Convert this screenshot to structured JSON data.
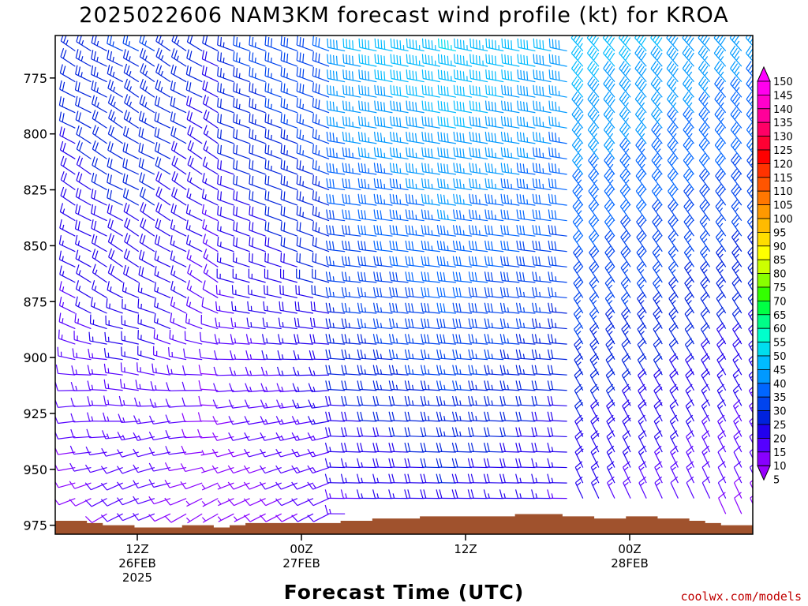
{
  "chart_data": {
    "type": "wind-barb time-height cross section",
    "title": "2025022606 NAM3KM forecast wind profile (kt) for KROA",
    "xlabel": "Forecast Time (UTC)",
    "ylabel": "",
    "units": "kt",
    "y_axis": {
      "quantity": "pressure (hPa)",
      "inverted": true,
      "range": [
        979,
        756
      ],
      "ticks": [
        775,
        800,
        825,
        850,
        875,
        900,
        925,
        950,
        975
      ]
    },
    "x_axis": {
      "range_hours": [
        0,
        51
      ],
      "ticks": [
        {
          "hour": 6,
          "line1": "12Z",
          "line2": "26FEB",
          "line3": "2025"
        },
        {
          "hour": 18,
          "line1": "00Z",
          "line2": "27FEB",
          "line3": ""
        },
        {
          "hour": 30,
          "line1": "12Z",
          "line2": "",
          "line3": ""
        },
        {
          "hour": 42,
          "line1": "00Z",
          "line2": "28FEB",
          "line3": ""
        },
        {
          "hour": 54,
          "line1": "12Z",
          "line2": "",
          "line3": ""
        }
      ]
    },
    "columns_hours_start": 1,
    "columns_count": 44,
    "levels_hpa_top": 756,
    "levels_hpa_step": 6.9,
    "levels_count": 33,
    "colorbar": {
      "levels": [
        5,
        10,
        15,
        20,
        25,
        30,
        35,
        40,
        45,
        50,
        55,
        60,
        65,
        70,
        75,
        80,
        85,
        90,
        95,
        100,
        105,
        110,
        115,
        120,
        125,
        130,
        135,
        140,
        145,
        150
      ],
      "colors": [
        "#8800ff",
        "#5500ff",
        "#2200ee",
        "#0022dd",
        "#0044ee",
        "#0066ff",
        "#0099ff",
        "#00bbff",
        "#00ddee",
        "#00ffcc",
        "#00ff88",
        "#00ff44",
        "#33ff00",
        "#88ff00",
        "#ccff00",
        "#ffff00",
        "#ffdd00",
        "#ffbb00",
        "#ff9900",
        "#ff7700",
        "#ff5500",
        "#ff3300",
        "#ff0000",
        "#ff0033",
        "#ff0066",
        "#ff0099",
        "#ff00cc",
        "#ff00ee"
      ],
      "top_color": "#ff00ff",
      "bottom_color": "#9900ff"
    },
    "ground": {
      "color": "#a0522d",
      "surface_pressure_hpa": [
        973,
        973,
        974,
        975,
        975,
        976,
        976,
        976,
        975,
        975,
        976,
        975,
        974,
        974,
        974,
        974,
        974,
        974,
        973,
        973,
        972,
        972,
        972,
        971,
        971,
        971,
        971,
        971,
        971,
        970,
        970,
        970,
        971,
        971,
        972,
        972,
        971,
        971,
        972,
        972,
        973,
        974,
        975,
        975
      ]
    }
  },
  "credit": "coolwx.com/models"
}
